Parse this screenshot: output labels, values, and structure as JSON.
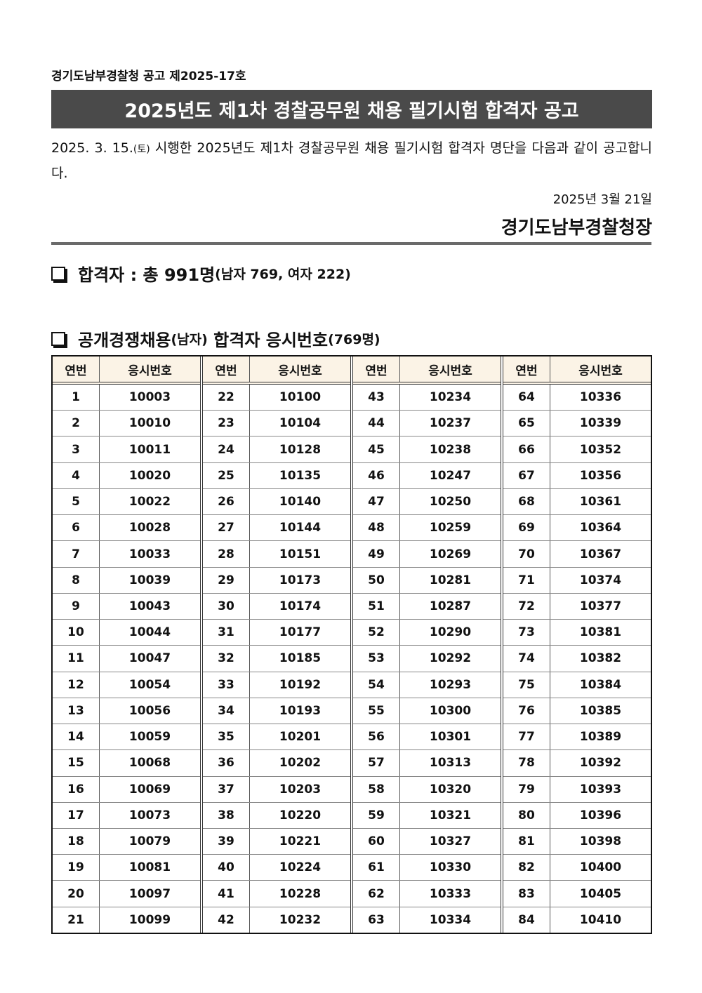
{
  "header": {
    "doc_number": "경기도남부경찰청 공고 제2025-17호",
    "title": "2025년도 제1차 경찰공무원 채용 필기시험 합격자 공고",
    "intro_date": "2025. 3. 15.",
    "intro_day": "(토)",
    "intro_text": " 시행한 2025년도 제1차 경찰공무원 채용 필기시험 합격자 명단을 다음과 같이 공고합니다.",
    "date": "2025년 3월 21일",
    "issuer": "경기도남부경찰청장"
  },
  "summary": {
    "label": "합격자 : 총 991명",
    "detail": "(남자 769, 여자 222)"
  },
  "section": {
    "label": "공개경쟁채용",
    "label_sub": "(남자)",
    "label2": " 합격자 응시번호",
    "count": "(769명)"
  },
  "table": {
    "col_no": "연번",
    "col_id": "응시번호",
    "groups": [
      {
        "rows": [
          [
            "1",
            "10003"
          ],
          [
            "2",
            "10010"
          ],
          [
            "3",
            "10011"
          ],
          [
            "4",
            "10020"
          ],
          [
            "5",
            "10022"
          ],
          [
            "6",
            "10028"
          ],
          [
            "7",
            "10033"
          ],
          [
            "8",
            "10039"
          ],
          [
            "9",
            "10043"
          ],
          [
            "10",
            "10044"
          ],
          [
            "11",
            "10047"
          ],
          [
            "12",
            "10054"
          ],
          [
            "13",
            "10056"
          ],
          [
            "14",
            "10059"
          ],
          [
            "15",
            "10068"
          ],
          [
            "16",
            "10069"
          ],
          [
            "17",
            "10073"
          ],
          [
            "18",
            "10079"
          ],
          [
            "19",
            "10081"
          ],
          [
            "20",
            "10097"
          ],
          [
            "21",
            "10099"
          ]
        ]
      },
      {
        "rows": [
          [
            "22",
            "10100"
          ],
          [
            "23",
            "10104"
          ],
          [
            "24",
            "10128"
          ],
          [
            "25",
            "10135"
          ],
          [
            "26",
            "10140"
          ],
          [
            "27",
            "10144"
          ],
          [
            "28",
            "10151"
          ],
          [
            "29",
            "10173"
          ],
          [
            "30",
            "10174"
          ],
          [
            "31",
            "10177"
          ],
          [
            "32",
            "10185"
          ],
          [
            "33",
            "10192"
          ],
          [
            "34",
            "10193"
          ],
          [
            "35",
            "10201"
          ],
          [
            "36",
            "10202"
          ],
          [
            "37",
            "10203"
          ],
          [
            "38",
            "10220"
          ],
          [
            "39",
            "10221"
          ],
          [
            "40",
            "10224"
          ],
          [
            "41",
            "10228"
          ],
          [
            "42",
            "10232"
          ]
        ]
      },
      {
        "rows": [
          [
            "43",
            "10234"
          ],
          [
            "44",
            "10237"
          ],
          [
            "45",
            "10238"
          ],
          [
            "46",
            "10247"
          ],
          [
            "47",
            "10250"
          ],
          [
            "48",
            "10259"
          ],
          [
            "49",
            "10269"
          ],
          [
            "50",
            "10281"
          ],
          [
            "51",
            "10287"
          ],
          [
            "52",
            "10290"
          ],
          [
            "53",
            "10292"
          ],
          [
            "54",
            "10293"
          ],
          [
            "55",
            "10300"
          ],
          [
            "56",
            "10301"
          ],
          [
            "57",
            "10313"
          ],
          [
            "58",
            "10320"
          ],
          [
            "59",
            "10321"
          ],
          [
            "60",
            "10327"
          ],
          [
            "61",
            "10330"
          ],
          [
            "62",
            "10333"
          ],
          [
            "63",
            "10334"
          ]
        ]
      },
      {
        "rows": [
          [
            "64",
            "10336"
          ],
          [
            "65",
            "10339"
          ],
          [
            "66",
            "10352"
          ],
          [
            "67",
            "10356"
          ],
          [
            "68",
            "10361"
          ],
          [
            "69",
            "10364"
          ],
          [
            "70",
            "10367"
          ],
          [
            "71",
            "10374"
          ],
          [
            "72",
            "10377"
          ],
          [
            "73",
            "10381"
          ],
          [
            "74",
            "10382"
          ],
          [
            "75",
            "10384"
          ],
          [
            "76",
            "10385"
          ],
          [
            "77",
            "10389"
          ],
          [
            "78",
            "10392"
          ],
          [
            "79",
            "10393"
          ],
          [
            "80",
            "10396"
          ],
          [
            "81",
            "10398"
          ],
          [
            "82",
            "10400"
          ],
          [
            "83",
            "10405"
          ],
          [
            "84",
            "10410"
          ]
        ]
      }
    ]
  }
}
